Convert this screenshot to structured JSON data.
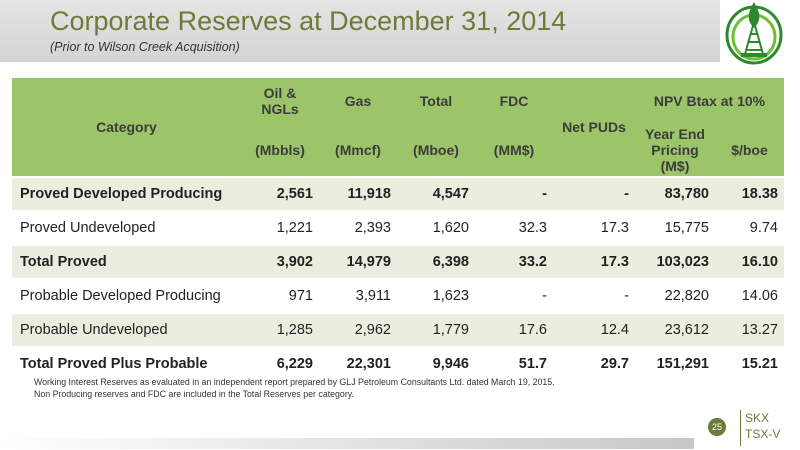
{
  "slide": {
    "title": "Corporate Reserves at December 31, 2014",
    "subtitle": "(Prior to Wilson Creek Acquisition)",
    "page_number": "25",
    "ticker_primary": "SKX",
    "ticker_exchange": "TSX-V"
  },
  "colors": {
    "title": "#6b7b3a",
    "header_fill": "#9cc469",
    "row_shade": "#ebeedf"
  },
  "logo": {
    "icon": "oil-derrick-leaf-logo"
  },
  "table": {
    "headers": {
      "category": "Category",
      "oil": "Oil & NGLs",
      "gas": "Gas",
      "total": "Total",
      "fdc": "FDC",
      "net_puds": "Net PUDs",
      "npv_group": "NPV Btax at 10%",
      "oil_unit": "(Mbbls)",
      "gas_unit": "(Mmcf)",
      "total_unit": "(Mboe)",
      "fdc_unit": "(MM$)",
      "npv_pricing": "Year End Pricing (M$)",
      "npv_per_boe": "$/boe"
    },
    "rows": [
      {
        "category": "Proved Developed Producing",
        "oil": "2,561",
        "gas": "11,918",
        "total": "4,547",
        "fdc": "-",
        "net_puds": "-",
        "npv": "83,780",
        "per_boe": "18.38"
      },
      {
        "category": "Proved Undeveloped",
        "oil": "1,221",
        "gas": "2,393",
        "total": "1,620",
        "fdc": "32.3",
        "net_puds": "17.3",
        "npv": "15,775",
        "per_boe": "9.74"
      },
      {
        "category": "Total Proved",
        "oil": "3,902",
        "gas": "14,979",
        "total": "6,398",
        "fdc": "33.2",
        "net_puds": "17.3",
        "npv": "103,023",
        "per_boe": "16.10"
      },
      {
        "category": "Probable Developed Producing",
        "oil": "971",
        "gas": "3,911",
        "total": "1,623",
        "fdc": "-",
        "net_puds": "-",
        "npv": "22,820",
        "per_boe": "14.06"
      },
      {
        "category": "Probable Undeveloped",
        "oil": "1,285",
        "gas": "2,962",
        "total": "1,779",
        "fdc": "17.6",
        "net_puds": "12.4",
        "npv": "23,612",
        "per_boe": "13.27"
      },
      {
        "category": "Total Proved Plus Probable",
        "oil": "6,229",
        "gas": "22,301",
        "total": "9,946",
        "fdc": "51.7",
        "net_puds": "29.7",
        "npv": "151,291",
        "per_boe": "15.21"
      }
    ]
  },
  "footnotes": [
    "Working Interest Reserves as evaluated in an independent report prepared by GLJ Petroleum Consultants Ltd. dated March 19, 2015.",
    "Non Producing reserves and FDC are included in the Total Reserves per category."
  ]
}
